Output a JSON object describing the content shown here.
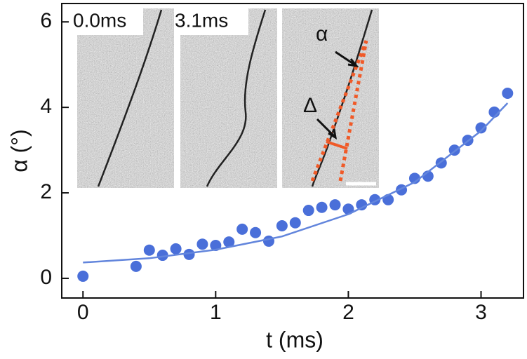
{
  "chart_data": {
    "type": "scatter",
    "x_label": "t (ms)",
    "y_label": "α (°)",
    "xlim": [
      -0.16,
      3.32
    ],
    "ylim": [
      -0.46,
      6.43
    ],
    "xticks": [
      0,
      1,
      2,
      3
    ],
    "yticks": [
      0,
      2,
      4,
      6
    ],
    "series": [
      {
        "color": "#4a6fd9",
        "x": [
          0,
          0.4,
          0.5,
          0.6,
          0.7,
          0.8,
          0.9,
          1.0,
          1.1,
          1.2,
          1.3,
          1.4,
          1.5,
          1.6,
          1.7,
          1.8,
          1.9,
          2.0,
          2.1,
          2.2,
          2.3,
          2.4,
          2.5,
          2.6,
          2.7,
          2.8,
          2.9,
          3.0,
          3.1,
          3.2
        ],
        "values": [
          0.05,
          0.28,
          0.66,
          0.54,
          0.69,
          0.56,
          0.8,
          0.77,
          0.85,
          1.15,
          1.07,
          0.87,
          1.23,
          1.3,
          1.59,
          1.66,
          1.72,
          1.62,
          1.72,
          1.84,
          1.84,
          2.07,
          2.34,
          2.39,
          2.7,
          3.0,
          3.23,
          3.52,
          3.89,
          4.33
        ]
      },
      {
        "color": "#6285dc",
        "line": true,
        "x": [
          0,
          0.5,
          1.0,
          1.5,
          2.0,
          2.5,
          3.0,
          3.2
        ],
        "values": [
          0.37,
          0.47,
          0.67,
          0.98,
          1.5,
          2.25,
          3.45,
          4.1
        ]
      }
    ],
    "annotations": [
      "0.0ms",
      "3.1ms",
      "α",
      "Δ"
    ]
  }
}
